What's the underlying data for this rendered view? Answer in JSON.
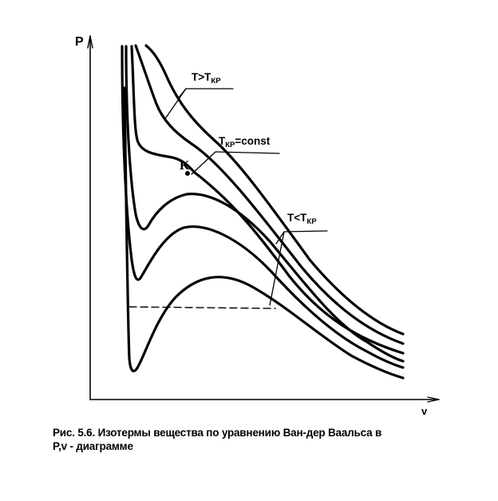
{
  "diagram": {
    "axis_y_label": "P",
    "axis_x_label": "v",
    "label_above": {
      "base": "T>T",
      "sub": "КР"
    },
    "label_critical": {
      "base": "T",
      "sub": "КР",
      "suffix": "=const"
    },
    "label_point": "K",
    "label_below": {
      "base": "T<T",
      "sub": "КР"
    }
  },
  "caption": {
    "line1": "Рис. 5.6. Изотермы вещества по уравнению Ван-дер Ваальса в",
    "line2": "P,v - диаграмме"
  }
}
